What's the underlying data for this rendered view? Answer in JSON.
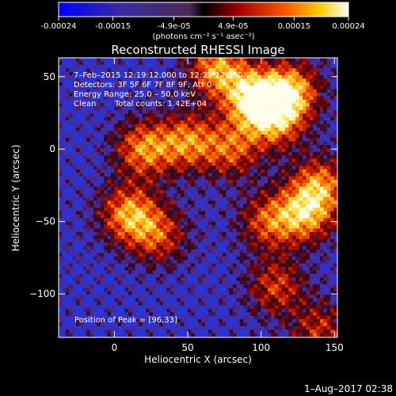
{
  "colorbar": {
    "ticks": [
      "-0.00024",
      "-0.00015",
      "-4.9e-05",
      "4.9e-05",
      "0.00015",
      "0.00024"
    ],
    "tick_values": [
      -0.00024,
      -0.00015,
      -4.9e-05,
      4.9e-05,
      0.00015,
      0.00024
    ],
    "unit_label": "(photons cm⁻² s⁻¹ asec⁻²)"
  },
  "chart_data": {
    "type": "heatmap",
    "title": "Reconstructed RHESSI Image",
    "xlabel": "Heliocentric X (arcsec)",
    "ylabel": "Heliocentric Y (arcsec)",
    "xlim": [
      -38,
      152
    ],
    "ylim": [
      -130,
      63
    ],
    "xticks": [
      0,
      50,
      100,
      150
    ],
    "xtick_labels": [
      "0",
      "50",
      "100",
      "150"
    ],
    "yticks": [
      50,
      0,
      -50,
      -100
    ],
    "ytick_labels": [
      "50",
      "0",
      "−50",
      "−100"
    ],
    "value_range": [
      -0.00024,
      0.00024
    ],
    "peak_position": [
      96,
      33
    ],
    "grid": false,
    "annotations": {
      "time_range": "7–Feb–2015 12:19:12.000 to 12:29:12.000",
      "detectors": "Detectors: 3F 5F 6F 7F 8F 9F, Att 0",
      "energy_range": "Energy Range: 25.0 – 50.0 keV",
      "clean_method": "Clean",
      "total_counts": "Total counts: 1.42E+04",
      "peak": "Position of Peak = [96,33]"
    },
    "emission_sources": [
      {
        "x": 95,
        "y": 35,
        "amplitude": 1.0
      },
      {
        "x": 120,
        "y": 40,
        "amplitude": 0.85
      },
      {
        "x": 70,
        "y": 55,
        "amplitude": 0.8
      },
      {
        "x": 110,
        "y": 20,
        "amplitude": 0.7
      },
      {
        "x": 20,
        "y": 0,
        "amplitude": 0.75
      },
      {
        "x": 50,
        "y": 5,
        "amplitude": 0.7
      },
      {
        "x": 80,
        "y": 0,
        "amplitude": 0.6
      },
      {
        "x": 140,
        "y": -25,
        "amplitude": 0.7
      },
      {
        "x": 130,
        "y": -45,
        "amplitude": 0.75
      },
      {
        "x": 105,
        "y": -50,
        "amplitude": 0.6
      },
      {
        "x": 10,
        "y": -45,
        "amplitude": 0.8
      },
      {
        "x": 30,
        "y": -60,
        "amplitude": 0.55
      },
      {
        "x": 110,
        "y": -95,
        "amplitude": 0.55
      },
      {
        "x": 140,
        "y": -125,
        "amplitude": 0.5
      }
    ]
  },
  "footer": {
    "timestamp": "1–Aug–2017 02:38"
  }
}
